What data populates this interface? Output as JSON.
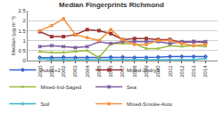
{
  "chart_data": {
    "type": "line",
    "title": "Median Fingerprints Richmond",
    "y_label": "Median (µg m⁻³)",
    "categories": [
      "2000",
      "2001",
      "2002",
      "2003",
      "2004",
      "2005",
      "2006",
      "2007",
      "2008",
      "2009",
      "2010",
      "2011",
      "2012",
      "2013",
      "2014"
    ],
    "ylim": [
      0,
      2.5
    ],
    "yticks": [
      0,
      0.5,
      1,
      1.5,
      2,
      2.5
    ],
    "grid": true,
    "legend": "bottom",
    "series": [
      {
        "name": "Auto1+2",
        "color": "#3a5fcd",
        "marker": "diamond",
        "values": [
          0.15,
          0.15,
          0.17,
          0.15,
          0.15,
          0.15,
          0.17,
          0.17,
          0.15,
          0.15,
          0.17,
          0.2,
          0.2,
          0.2,
          0.2
        ]
      },
      {
        "name": "Mixed-2ndryS",
        "color": "#9b3434",
        "marker": "square",
        "values": [
          1.45,
          1.2,
          1.2,
          1.3,
          1.55,
          1.5,
          1.35,
          1.05,
          1.1,
          1.1,
          1.05,
          1.05,
          0.9,
          0.95,
          0.9
        ]
      },
      {
        "name": "Mixed-Ind-Saged",
        "color": "#9bbb3a",
        "marker": "triangle-up",
        "values": [
          0.45,
          0.4,
          0.4,
          0.45,
          0.5,
          0.15,
          0.85,
          0.85,
          0.85,
          0.6,
          0.6,
          0.75,
          0.7,
          0.75,
          0.7
        ]
      },
      {
        "name": "Sea",
        "color": "#7e5fa2",
        "marker": "x",
        "values": [
          0.7,
          0.75,
          0.7,
          0.65,
          0.7,
          0.95,
          0.85,
          0.95,
          0.95,
          0.95,
          0.95,
          0.85,
          0.95,
          0.95,
          0.95
        ]
      },
      {
        "name": "Soil",
        "color": "#3cb4c8",
        "marker": "star",
        "values": [
          0.1,
          0.05,
          0.05,
          0.05,
          0.05,
          0.05,
          0.05,
          0.05,
          0.05,
          0.05,
          0.05,
          0.05,
          0.05,
          0.05,
          0.1
        ]
      },
      {
        "name": "Mixed-Smoke-Auto",
        "color": "#f39440",
        "marker": "circle",
        "values": [
          1.5,
          1.75,
          2.1,
          1.3,
          1.15,
          1.0,
          1.55,
          1.05,
          0.8,
          0.8,
          1.0,
          1.0,
          0.85,
          0.75,
          0.8
        ]
      }
    ]
  }
}
